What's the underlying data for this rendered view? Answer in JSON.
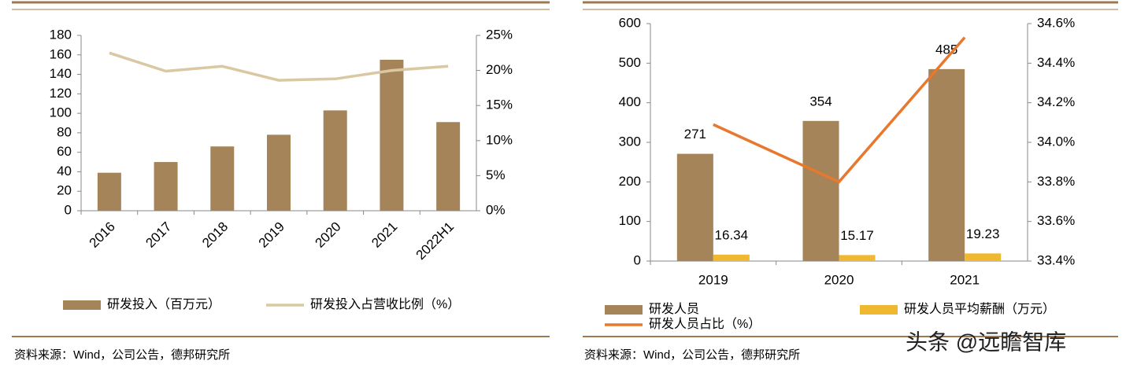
{
  "chart_data": [
    {
      "type": "bar",
      "categories": [
        "2016",
        "2017",
        "2018",
        "2019",
        "2020",
        "2021",
        "2022H1"
      ],
      "series": [
        {
          "name": "研发投入（百万元）",
          "type": "bar",
          "color": "#a5845a",
          "values": [
            39,
            50,
            66,
            78,
            103,
            155,
            91
          ]
        },
        {
          "name": "研发投入占营收比例（%）",
          "type": "line",
          "axis": "y2",
          "color": "#d9c8a2",
          "values": [
            22.5,
            19.9,
            20.6,
            18.6,
            18.8,
            20.0,
            20.6
          ]
        }
      ],
      "ylim": [
        0,
        180
      ],
      "yticks": [
        0,
        20,
        40,
        60,
        80,
        100,
        120,
        140,
        160,
        180
      ],
      "y2lim": [
        0,
        25
      ],
      "y2ticks": [
        {
          "value": 0,
          "label": "0%"
        },
        {
          "value": 5,
          "label": "5%"
        },
        {
          "value": 10,
          "label": "10%"
        },
        {
          "value": 15,
          "label": "15%"
        },
        {
          "value": 20,
          "label": "20%"
        },
        {
          "value": 25,
          "label": "25%"
        }
      ],
      "grid": false,
      "data_labels": false,
      "source": "资料来源：Wind，公司公告，德邦研究所"
    },
    {
      "type": "bar",
      "categories": [
        "2019",
        "2020",
        "2021"
      ],
      "series": [
        {
          "name": "研发人员",
          "type": "bar",
          "color": "#a5845a",
          "values": [
            271,
            354,
            485
          ]
        },
        {
          "name": "研发人员平均薪酬（万元）",
          "type": "bar",
          "color": "#f0b830",
          "values": [
            16.34,
            15.17,
            19.23
          ]
        },
        {
          "name": "研发人员占比（%）",
          "type": "line",
          "axis": "y2",
          "color": "#e8782e",
          "values": [
            34.09,
            33.8,
            34.53
          ]
        }
      ],
      "ylim": [
        0,
        600
      ],
      "yticks": [
        0,
        100,
        200,
        300,
        400,
        500,
        600
      ],
      "y2lim": [
        33.4,
        34.6
      ],
      "y2ticks": [
        {
          "value": 33.4,
          "label": "33.4%"
        },
        {
          "value": 33.6,
          "label": "33.6%"
        },
        {
          "value": 33.8,
          "label": "33.8%"
        },
        {
          "value": 34.0,
          "label": "34.0%"
        },
        {
          "value": 34.2,
          "label": "34.2%"
        },
        {
          "value": 34.4,
          "label": "34.4%"
        },
        {
          "value": 34.6,
          "label": "34.6%"
        }
      ],
      "grid": false,
      "data_labels": true,
      "source": "资料来源：Wind，公司公告，德邦研究所"
    }
  ],
  "watermark": "头条 @远瞻智库"
}
